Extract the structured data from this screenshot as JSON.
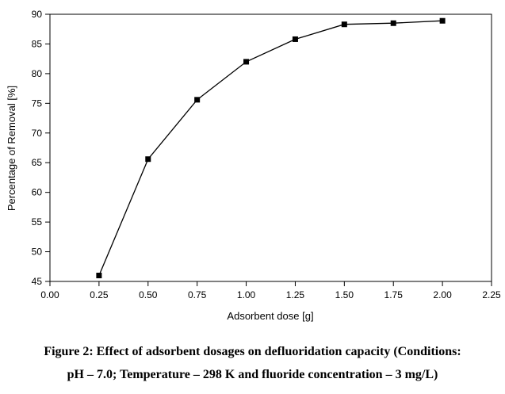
{
  "chart_data": {
    "type": "line",
    "xlabel": "Adsorbent dose [g]",
    "ylabel": "Percentage of Removal [%]",
    "xlim": [
      0.0,
      2.25
    ],
    "ylim": [
      45,
      90
    ],
    "x_ticks": [
      "0.00",
      "0.25",
      "0.50",
      "0.75",
      "1.00",
      "1.25",
      "1.50",
      "1.75",
      "2.00",
      "2.25"
    ],
    "y_ticks": [
      "45",
      "50",
      "55",
      "60",
      "65",
      "70",
      "75",
      "80",
      "85",
      "90"
    ],
    "x": [
      0.25,
      0.5,
      0.75,
      1.0,
      1.25,
      1.5,
      1.75,
      2.0
    ],
    "y": [
      46.0,
      65.6,
      75.6,
      82.0,
      85.8,
      88.3,
      88.5,
      88.9
    ],
    "marker": "square",
    "grid": false,
    "colors": {
      "line": "#000000",
      "marker": "#000000"
    }
  },
  "caption": {
    "line1": "Figure 2: Effect of adsorbent dosages on defluoridation capacity (Conditions:",
    "line2": "pH – 7.0; Temperature – 298 K and fluoride concentration – 3 mg/L)"
  }
}
